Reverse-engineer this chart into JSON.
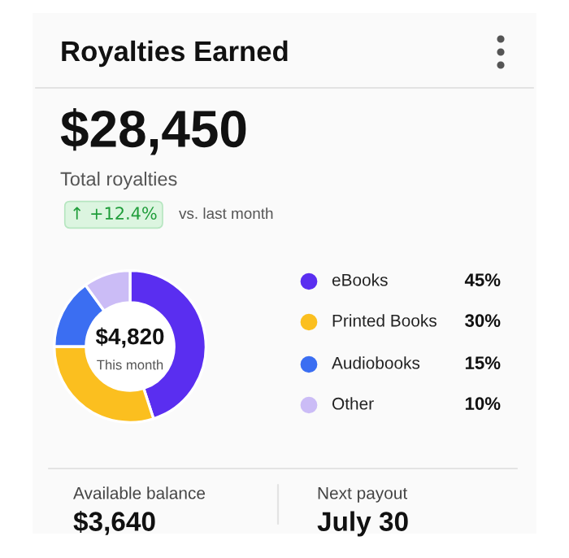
{
  "chart_data": {
    "type": "donut",
    "title": "Royalties Earned",
    "categories": [
      "eBooks",
      "Printed Books",
      "Audiobooks",
      "Other"
    ],
    "values": [
      45,
      30,
      15,
      10
    ],
    "colors": [
      "#5a2ef0",
      "#fbbf1f",
      "#3b6ef2",
      "#cbbcf6"
    ],
    "value_labels": [
      "45%",
      "30%",
      "15%",
      "10%"
    ],
    "legend": "right",
    "annotations": [
      "$28,450",
      "Total royalties",
      "↑ +12.4%",
      "vs. last month",
      "$4,820",
      "This month",
      "Available balance",
      "$3,640",
      "Next payout",
      "July 30"
    ]
  }
}
